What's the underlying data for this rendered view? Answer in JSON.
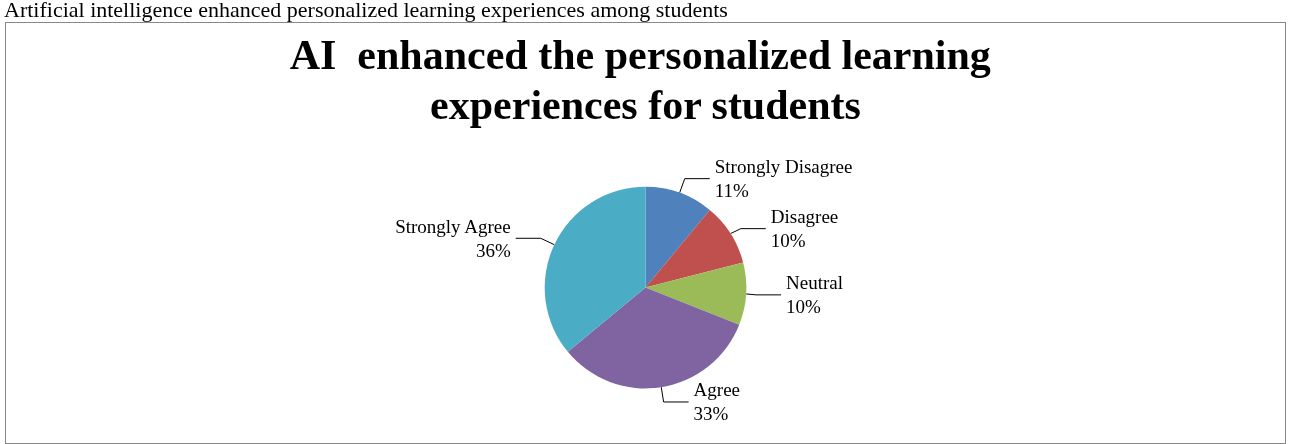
{
  "chart_data": {
    "type": "pie",
    "title": "AI  enhanced the personalized learning experiences for students",
    "annotations": [
      "Artificial intelligence enhanced personalized learning experiences among students"
    ],
    "categories": [
      "Strongly Disagree",
      "Disagree",
      "Neutral",
      "Agree",
      "Strongly Agree"
    ],
    "values": [
      11,
      10,
      10,
      33,
      36
    ],
    "value_labels": [
      "11%",
      "10%",
      "10%",
      "33%",
      "36%"
    ],
    "colors": [
      "#4f81bd",
      "#c0504d",
      "#9bbb59",
      "#8064a2",
      "#4bacc6"
    ],
    "legend": false
  }
}
